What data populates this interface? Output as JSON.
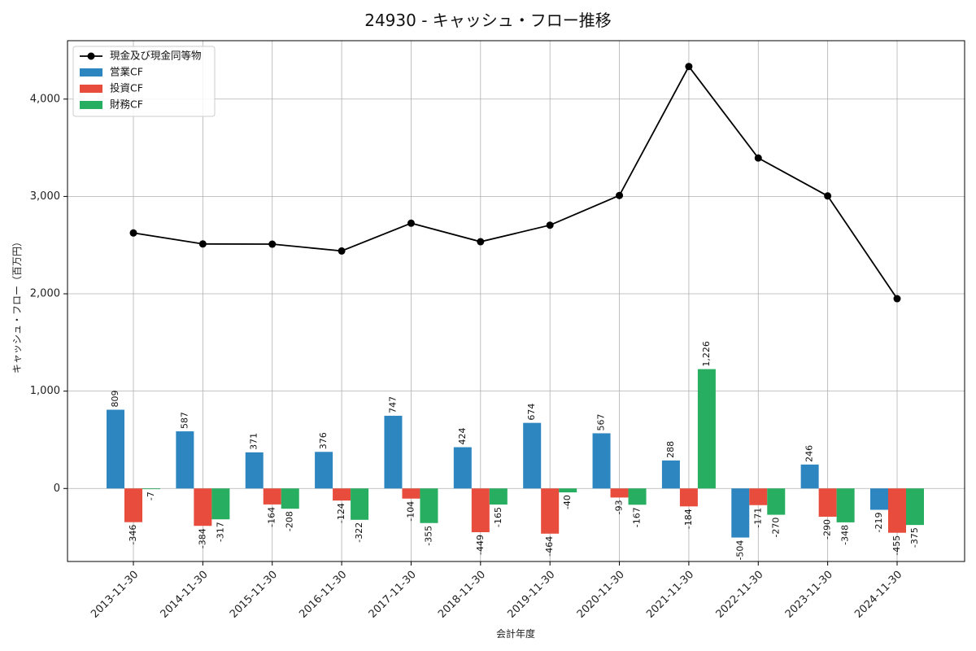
{
  "chart_data": {
    "type": "bar",
    "title": "24930 - キャッシュ・フロー推移",
    "xlabel": "会計年度",
    "ylabel": "キャッシュ・フロー（百万円）",
    "ylim": [
      -750,
      4600
    ],
    "yticks": [
      0,
      1000,
      2000,
      3000,
      4000
    ],
    "ytick_labels": [
      "0",
      "1,000",
      "2,000",
      "3,000",
      "4,000"
    ],
    "grid": true,
    "legend_position": "top-left",
    "categories": [
      "2013-11-30",
      "2014-11-30",
      "2015-11-30",
      "2016-11-30",
      "2017-11-30",
      "2018-11-30",
      "2019-11-30",
      "2020-11-30",
      "2021-11-30",
      "2022-11-30",
      "2023-11-30",
      "2024-11-30"
    ],
    "series": [
      {
        "name": "営業CF",
        "type": "bar",
        "color": "#2e86c1",
        "values": [
          809,
          587,
          371,
          376,
          747,
          424,
          674,
          567,
          288,
          -504,
          246,
          -219
        ],
        "labels": [
          "809",
          "587",
          "371",
          "376",
          "747",
          "424",
          "674",
          "567",
          "288",
          "-504",
          "246",
          "-219"
        ]
      },
      {
        "name": "投資CF",
        "type": "bar",
        "color": "#e74c3c",
        "values": [
          -346,
          -384,
          -164,
          -124,
          -104,
          -449,
          -464,
          -93,
          -184,
          -171,
          -290,
          -455
        ],
        "labels": [
          "-346",
          "-384",
          "-164",
          "-124",
          "-104",
          "-449",
          "-464",
          "-93",
          "-184",
          "-171",
          "-290",
          "-455"
        ]
      },
      {
        "name": "財務CF",
        "type": "bar",
        "color": "#27ae60",
        "values": [
          -7,
          -317,
          -208,
          -322,
          -355,
          -165,
          -40,
          -167,
          1226,
          -270,
          -348,
          -375
        ],
        "labels": [
          "-7",
          "-317",
          "-208",
          "-322",
          "-355",
          "-165",
          "-40",
          "-167",
          "1,226",
          "-270",
          "-348",
          "-375"
        ]
      },
      {
        "name": "現金及び現金同等物",
        "type": "line",
        "color": "#000000",
        "values": [
          2625,
          2512,
          2510,
          2440,
          2725,
          2535,
          2705,
          3010,
          4335,
          3395,
          3005,
          1950
        ]
      }
    ]
  }
}
